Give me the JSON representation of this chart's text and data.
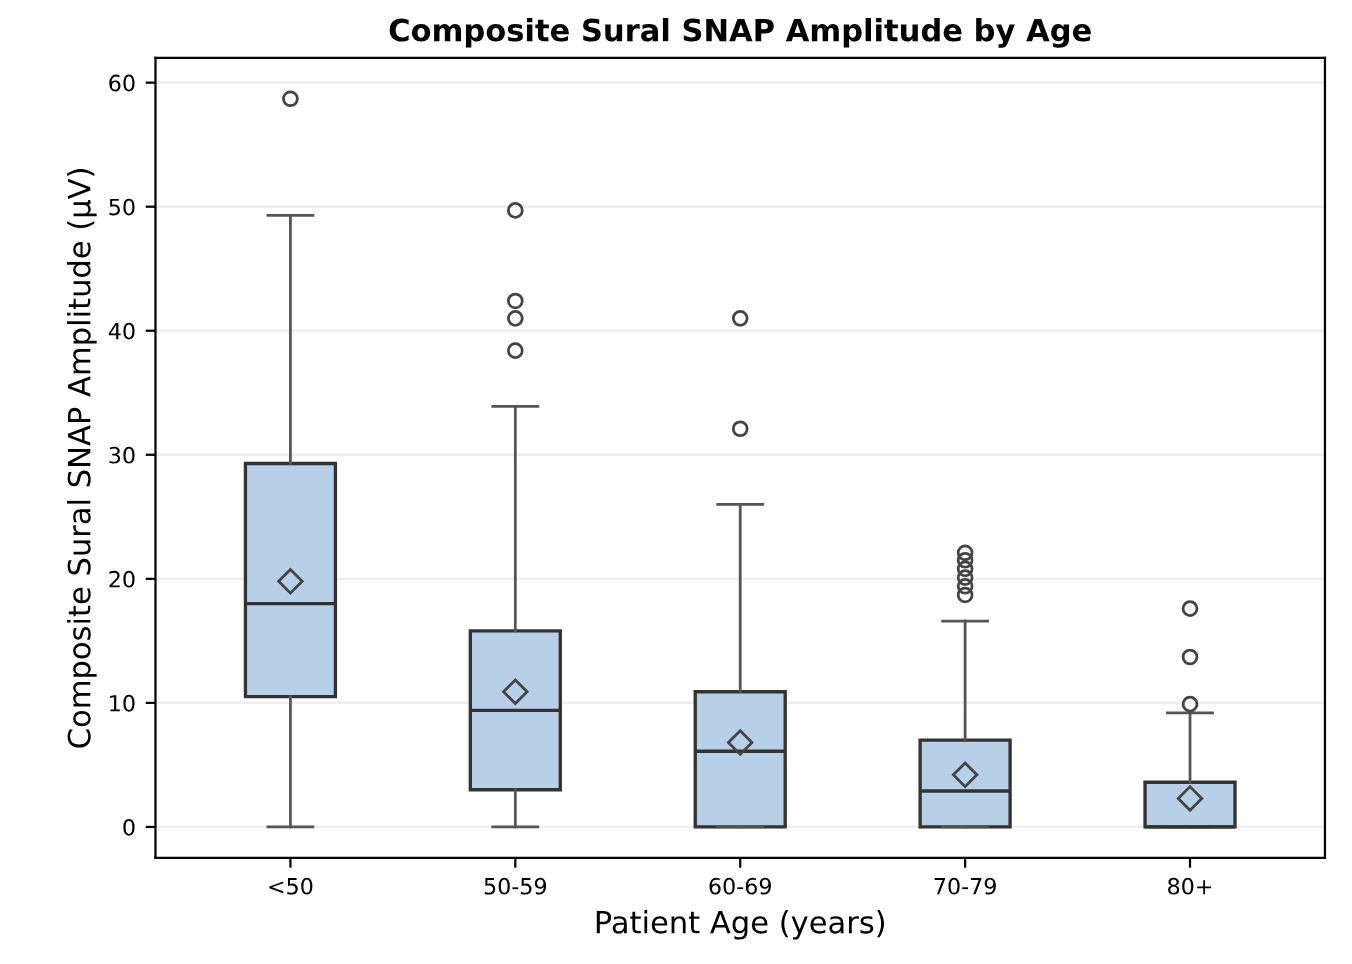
{
  "chart_data": {
    "type": "box",
    "title": "Composite Sural SNAP Amplitude by Age",
    "xlabel": "Patient Age (years)",
    "ylabel": "Composite Sural SNAP Amplitude (µV)",
    "categories": [
      "<50",
      "50-59",
      "60-69",
      "70-79",
      "80+"
    ],
    "color": "#b8cfe8",
    "boxes": [
      {
        "low": 0,
        "q1": 10.5,
        "median": 18,
        "q3": 29.3,
        "high": 49.3,
        "mean": 19.8,
        "outliers": [
          58.7
        ]
      },
      {
        "low": 0,
        "q1": 3,
        "median": 9.4,
        "q3": 15.8,
        "high": 33.9,
        "mean": 10.9,
        "outliers": [
          38.4,
          41,
          42.4,
          49.7
        ]
      },
      {
        "low": 0,
        "q1": 0,
        "median": 6.1,
        "q3": 10.9,
        "high": 26,
        "mean": 6.8,
        "outliers": [
          32.1,
          41
        ]
      },
      {
        "low": 0,
        "q1": 0,
        "median": 2.9,
        "q3": 7,
        "high": 16.6,
        "mean": 4.2,
        "outliers": [
          18.7,
          19.4,
          20.1,
          20.8,
          21.5,
          22.1
        ]
      },
      {
        "low": 0,
        "q1": 0,
        "median": 0,
        "q3": 3.6,
        "high": 9.2,
        "mean": 2.3,
        "outliers": [
          9.9,
          13.7,
          17.6
        ]
      }
    ],
    "ylim": [
      -2.5,
      62
    ],
    "yticks": [
      0,
      10,
      20,
      30,
      40,
      50,
      60
    ],
    "grid": "y"
  }
}
